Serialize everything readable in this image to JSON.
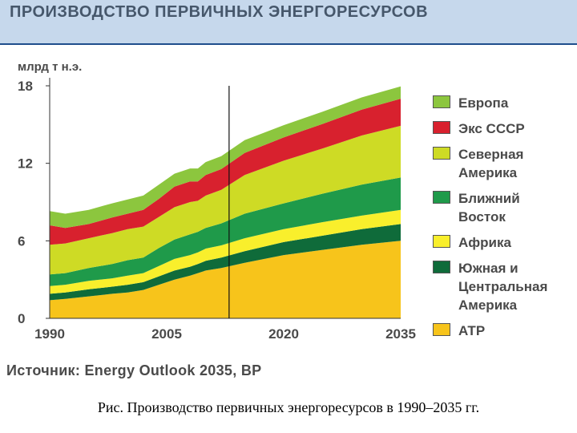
{
  "header": {
    "title": "ПРОИЗВОДСТВО ПЕРВИЧНЫХ ЭНЕРГОРЕСУРСОВ"
  },
  "chart_data": {
    "type": "area",
    "stacked": true,
    "ylabel": "млрд т н.э.",
    "ylim": [
      0,
      18
    ],
    "yticks": [
      "0",
      "6",
      "12",
      "18"
    ],
    "xlim": [
      1990,
      2035
    ],
    "xticks": [
      "1990",
      "2005",
      "2020",
      "2035"
    ],
    "forecast_line_x": 2013,
    "x": [
      1990,
      1992,
      1995,
      1998,
      2000,
      2002,
      2004,
      2006,
      2008,
      2009,
      2010,
      2012,
      2015,
      2020,
      2025,
      2030,
      2035
    ],
    "series": [
      {
        "name": "АТР",
        "color": "#f7c41b",
        "values": [
          1.4,
          1.5,
          1.7,
          1.9,
          2.0,
          2.2,
          2.6,
          3.0,
          3.3,
          3.5,
          3.7,
          3.9,
          4.3,
          4.9,
          5.3,
          5.7,
          6.0
        ]
      },
      {
        "name": "Южная и Центральная Америка",
        "color": "#0f6b3a",
        "values": [
          0.5,
          0.5,
          0.55,
          0.55,
          0.6,
          0.6,
          0.65,
          0.7,
          0.7,
          0.7,
          0.75,
          0.8,
          0.9,
          1.0,
          1.1,
          1.2,
          1.3
        ]
      },
      {
        "name": "Африка",
        "color": "#f9ef2c",
        "values": [
          0.6,
          0.6,
          0.65,
          0.65,
          0.7,
          0.7,
          0.8,
          0.9,
          0.9,
          0.9,
          0.95,
          0.95,
          1.0,
          1.0,
          1.05,
          1.05,
          1.1
        ]
      },
      {
        "name": "Ближний Восток",
        "color": "#1f9a4a",
        "values": [
          0.9,
          0.9,
          1.0,
          1.1,
          1.2,
          1.2,
          1.4,
          1.5,
          1.6,
          1.6,
          1.6,
          1.7,
          1.9,
          2.0,
          2.2,
          2.4,
          2.5
        ]
      },
      {
        "name": "Северная Америка",
        "color": "#cedb25",
        "values": [
          2.3,
          2.3,
          2.3,
          2.4,
          2.4,
          2.4,
          2.4,
          2.5,
          2.5,
          2.4,
          2.5,
          2.6,
          3.0,
          3.3,
          3.5,
          3.8,
          4.0
        ]
      },
      {
        "name": "Экс СССР",
        "color": "#d8212e",
        "values": [
          1.5,
          1.2,
          1.1,
          1.2,
          1.2,
          1.3,
          1.4,
          1.6,
          1.6,
          1.5,
          1.6,
          1.6,
          1.7,
          1.8,
          1.9,
          2.0,
          2.1
        ]
      },
      {
        "name": "Европа",
        "color": "#8cc63e",
        "values": [
          1.1,
          1.1,
          1.1,
          1.1,
          1.1,
          1.1,
          1.1,
          1.0,
          1.0,
          1.0,
          1.0,
          1.0,
          1.0,
          0.95,
          0.95,
          0.95,
          0.95
        ]
      }
    ]
  },
  "legend": {
    "items": [
      {
        "label_lines": [
          "Европа"
        ],
        "color": "#8cc63e"
      },
      {
        "label_lines": [
          "Экс СССР"
        ],
        "color": "#d8212e"
      },
      {
        "label_lines": [
          "Северная",
          "Америка"
        ],
        "color": "#cedb25"
      },
      {
        "label_lines": [
          "Ближний",
          "Восток"
        ],
        "color": "#1f9a4a"
      },
      {
        "label_lines": [
          "Африка"
        ],
        "color": "#f9ef2c"
      },
      {
        "label_lines": [
          "Южная и",
          "Центральная",
          "Америка"
        ],
        "color": "#0f6b3a"
      },
      {
        "label_lines": [
          "АТР"
        ],
        "color": "#f7c41b"
      }
    ]
  },
  "source": "Источник: Energy Outlook 2035, BP",
  "caption": "Рис. Производство первичных энергоресурсов в 1990–2035 гг."
}
